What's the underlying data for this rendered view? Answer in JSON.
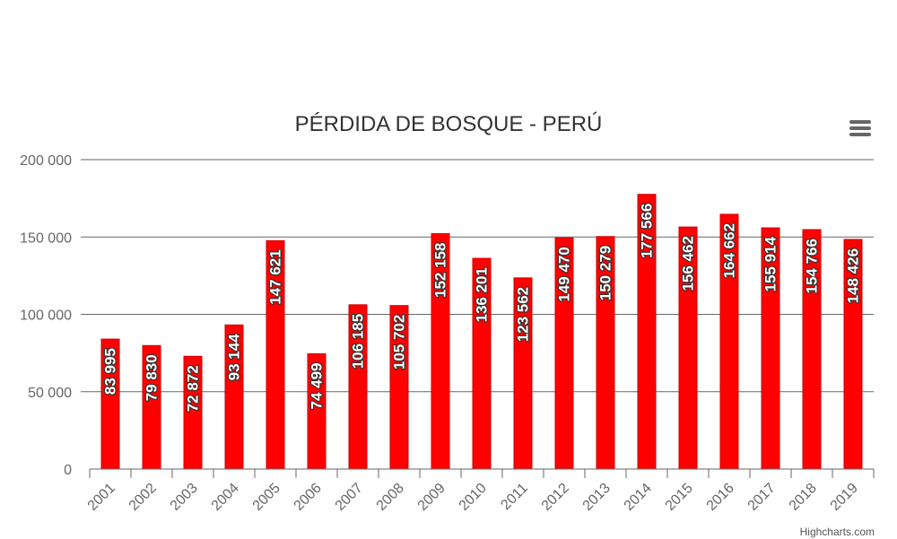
{
  "chart_data": {
    "type": "bar",
    "title": "PÉRDIDA DE BOSQUE - PERÚ",
    "categories": [
      "2001",
      "2002",
      "2003",
      "2004",
      "2005",
      "2006",
      "2007",
      "2008",
      "2009",
      "2010",
      "2011",
      "2012",
      "2013",
      "2014",
      "2015",
      "2016",
      "2017",
      "2018",
      "2019"
    ],
    "values": [
      83995,
      79830,
      72872,
      93144,
      147621,
      74499,
      106185,
      105702,
      152158,
      136201,
      123562,
      149470,
      150279,
      177566,
      156462,
      164662,
      155914,
      154766,
      148426
    ],
    "data_labels": [
      "83 995",
      "79 830",
      "72 872",
      "93 144",
      "147 621",
      "74 499",
      "106 185",
      "105 702",
      "152 158",
      "136 201",
      "123 562",
      "149 470",
      "150 279",
      "177 566",
      "156 462",
      "164 662",
      "155 914",
      "154 766",
      "148 426"
    ],
    "ylim": [
      0,
      200000
    ],
    "y_ticks": [
      0,
      50000,
      100000,
      150000,
      200000
    ],
    "y_tick_labels": [
      "0",
      "50 000",
      "100 000",
      "150 000",
      "200 000"
    ],
    "grid": true,
    "legend": false,
    "colors": {
      "bar": "#ff0000",
      "bar_border": "#cc0000",
      "grid": "#666666"
    }
  },
  "credit": "Highcharts.com",
  "menu_icon": "hamburger-menu-icon"
}
